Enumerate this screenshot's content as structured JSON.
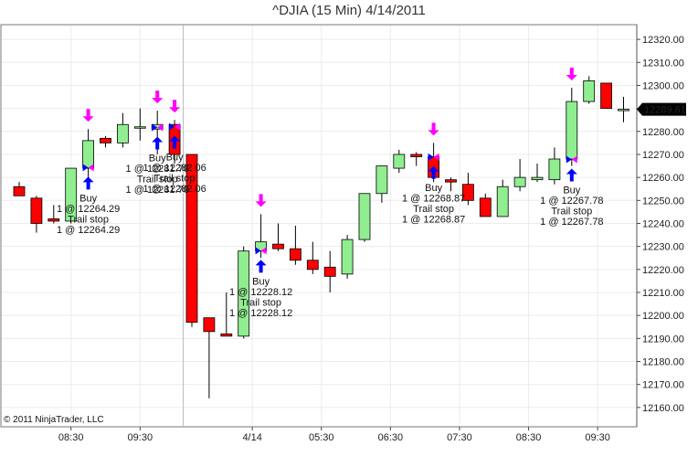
{
  "chart_data": {
    "type": "candlestick",
    "title": "^DJIA (15 Min)  4/14/2011",
    "copyright": "© 2011 NinjaTrader, LLC",
    "last_price": "12289.61",
    "ylim": [
      12152,
      12326
    ],
    "y_ticks": [
      {
        "value": 12320,
        "label": "12320.00"
      },
      {
        "value": 12310,
        "label": "12310.00"
      },
      {
        "value": 12300,
        "label": "12300.00"
      },
      {
        "value": 12290,
        "label": "12290.00"
      },
      {
        "value": 12280,
        "label": "12280.00"
      },
      {
        "value": 12270,
        "label": "12270.00"
      },
      {
        "value": 12260,
        "label": "12260.00"
      },
      {
        "value": 12250,
        "label": "12250.00"
      },
      {
        "value": 12240,
        "label": "12240.00"
      },
      {
        "value": 12230,
        "label": "12230.00"
      },
      {
        "value": 12220,
        "label": "12220.00"
      },
      {
        "value": 12210,
        "label": "12210.00"
      },
      {
        "value": 12200,
        "label": "12200.00"
      },
      {
        "value": 12190,
        "label": "12190.00"
      },
      {
        "value": 12180,
        "label": "12180.00"
      },
      {
        "value": 12170,
        "label": "12170.00"
      },
      {
        "value": 12160,
        "label": "12160.00"
      }
    ],
    "x_ticks": [
      {
        "bar": 3,
        "label": "08:30"
      },
      {
        "bar": 7,
        "label": "09:30"
      },
      {
        "bar": 13.5,
        "label": "4/14"
      },
      {
        "bar": 17.5,
        "label": "05:30"
      },
      {
        "bar": 21.5,
        "label": "06:30"
      },
      {
        "bar": 25.5,
        "label": "07:30"
      },
      {
        "bar": 29.5,
        "label": "08:30"
      },
      {
        "bar": 33.5,
        "label": "09:30"
      }
    ],
    "session_break_bar": 9.5,
    "candles": [
      {
        "o": 12256,
        "h": 12258,
        "l": 12252,
        "c": 12252
      },
      {
        "o": 12251,
        "h": 12252,
        "l": 12236,
        "c": 12240
      },
      {
        "o": 12242,
        "h": 12248,
        "l": 12240,
        "c": 12241
      },
      {
        "o": 12241,
        "h": 12264,
        "l": 12240,
        "c": 12264
      },
      {
        "o": 12264,
        "h": 12281,
        "l": 12260,
        "c": 12276
      },
      {
        "o": 12277,
        "h": 12278,
        "l": 12273,
        "c": 12275
      },
      {
        "o": 12275,
        "h": 12288,
        "l": 12273,
        "c": 12283
      },
      {
        "o": 12282,
        "h": 12290,
        "l": 12276,
        "c": 12282
      },
      {
        "o": 12281,
        "h": 12289,
        "l": 12270,
        "c": 12283
      },
      {
        "o": 12283,
        "h": 12285,
        "l": 12266,
        "c": 12270
      },
      {
        "o": 12270,
        "h": 12270,
        "l": 12195,
        "c": 12197
      },
      {
        "o": 12199,
        "h": 12199,
        "l": 12164,
        "c": 12193
      },
      {
        "o": 12192,
        "h": 12210,
        "l": 12191,
        "c": 12191
      },
      {
        "o": 12191,
        "h": 12230,
        "l": 12190,
        "c": 12228
      },
      {
        "o": 12228,
        "h": 12244,
        "l": 12225,
        "c": 12232
      },
      {
        "o": 12231,
        "h": 12240,
        "l": 12228,
        "c": 12229
      },
      {
        "o": 12229,
        "h": 12239,
        "l": 12222,
        "c": 12224
      },
      {
        "o": 12224,
        "h": 12232,
        "l": 12218,
        "c": 12220
      },
      {
        "o": 12221,
        "h": 12228,
        "l": 12210,
        "c": 12217
      },
      {
        "o": 12218,
        "h": 12235,
        "l": 12216,
        "c": 12233
      },
      {
        "o": 12233,
        "h": 12253,
        "l": 12232,
        "c": 12253
      },
      {
        "o": 12253,
        "h": 12265,
        "l": 12249,
        "c": 12265
      },
      {
        "o": 12264,
        "h": 12272,
        "l": 12262,
        "c": 12270
      },
      {
        "o": 12270,
        "h": 12271,
        "l": 12265,
        "c": 12269
      },
      {
        "o": 12269,
        "h": 12275,
        "l": 12258,
        "c": 12260
      },
      {
        "o": 12259,
        "h": 12260,
        "l": 12254,
        "c": 12258
      },
      {
        "o": 12257,
        "h": 12262,
        "l": 12248,
        "c": 12250
      },
      {
        "o": 12251,
        "h": 12253,
        "l": 12243,
        "c": 12243
      },
      {
        "o": 12243,
        "h": 12259,
        "l": 12243,
        "c": 12256
      },
      {
        "o": 12256,
        "h": 12268,
        "l": 12254,
        "c": 12260
      },
      {
        "o": 12259,
        "h": 12266,
        "l": 12258,
        "c": 12260
      },
      {
        "o": 12259,
        "h": 12273,
        "l": 12257,
        "c": 12268
      },
      {
        "o": 12268,
        "h": 12299,
        "l": 12265,
        "c": 12293
      },
      {
        "o": 12293,
        "h": 12304,
        "l": 12292,
        "c": 12302
      },
      {
        "o": 12301,
        "h": 12301,
        "l": 12290,
        "c": 12290
      },
      {
        "o": 12289.61,
        "h": 12295,
        "l": 12284,
        "c": 12289.61
      }
    ],
    "signals": [
      {
        "bar": 4,
        "price": 12264.29,
        "text": [
          "Buy",
          "1 @ 12264.29",
          "Trail stop",
          "1 @ 12264.29"
        ]
      },
      {
        "bar": 8,
        "price": 12281.7,
        "text": [
          "Buy",
          "1 @ 12281.70",
          "Trail stop",
          "1 @ 12281.70"
        ]
      },
      {
        "bar": 9,
        "price": 12282.06,
        "text": [
          "Buy",
          "1 @ 12282.06",
          "Trail stop",
          "1 @ 12282.06"
        ]
      },
      {
        "bar": 14,
        "price": 12228.12,
        "text": [
          "Buy",
          "1 @ 12228.12",
          "Trail stop",
          "1 @ 12228.12"
        ]
      },
      {
        "bar": 24,
        "price": 12268.87,
        "text": [
          "Buy",
          "1 @ 12268.87",
          "Trail stop",
          "1 @ 12268.87"
        ]
      },
      {
        "bar": 32,
        "price": 12267.78,
        "text": [
          "Buy",
          "1 @ 12267.78",
          "Trail stop",
          "1 @ 12267.78"
        ]
      }
    ],
    "colors": {
      "up": "#90EE90",
      "down": "#FF0000",
      "outline": "#000000",
      "grid": "#ECECEC",
      "signal_arrow_up": "#0000FF",
      "signal_arrow_down": "#FF00FF",
      "price_box": "#000000",
      "price_text": "#FFFFFF"
    }
  }
}
